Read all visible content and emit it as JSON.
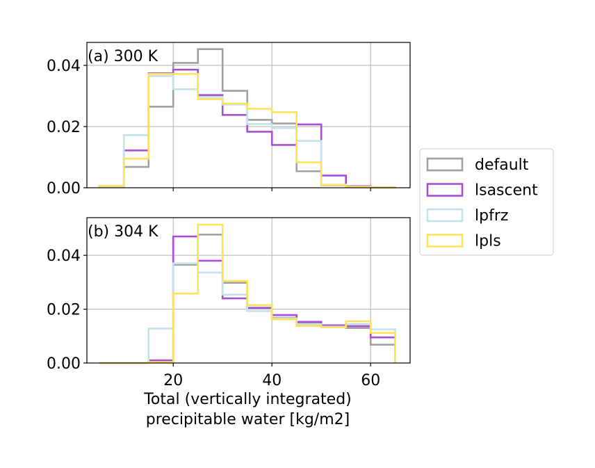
{
  "chart_data": [
    {
      "type": "histogram-step",
      "panel_label": "(a) 300 K",
      "bin_edges": [
        5,
        10,
        15,
        20,
        25,
        30,
        35,
        40,
        45,
        50,
        55,
        60,
        65
      ],
      "xlim": [
        2.5,
        68
      ],
      "ylim": [
        0,
        0.0475
      ],
      "x_ticks": [
        20,
        40,
        60
      ],
      "x_tick_labels": [
        "",
        "",
        ""
      ],
      "y_ticks": [
        0,
        0.02,
        0.04
      ],
      "y_tick_labels": [
        "0.00",
        "0.02",
        "0.04"
      ],
      "grid": true,
      "series": [
        {
          "name": "default",
          "color": "#a0a0a0",
          "values": [
            0.0005,
            0.0068,
            0.0265,
            0.0408,
            0.0453,
            0.0317,
            0.0222,
            0.021,
            0.0054,
            0.0008,
            0.0003,
            0.0001
          ]
        },
        {
          "name": "lsascent",
          "color": "#a94fd6",
          "values": [
            0.0004,
            0.0122,
            0.0374,
            0.0386,
            0.0303,
            0.0238,
            0.0183,
            0.014,
            0.0207,
            0.004,
            0.0005,
            0.0001
          ]
        },
        {
          "name": "lpfrz",
          "color": "#c3e2ea",
          "values": [
            0.0004,
            0.0172,
            0.0365,
            0.0322,
            0.0297,
            0.0272,
            0.0208,
            0.0195,
            0.0153,
            0.001,
            0.0003,
            0.0001
          ]
        },
        {
          "name": "lpls",
          "color": "#fde25c",
          "values": [
            0.0006,
            0.0095,
            0.0372,
            0.0372,
            0.029,
            0.0275,
            0.0258,
            0.0247,
            0.0083,
            0.0009,
            0.0003,
            0.0001
          ]
        }
      ]
    },
    {
      "type": "histogram-step",
      "panel_label": "(b) 304 K",
      "bin_edges": [
        5,
        10,
        15,
        20,
        25,
        30,
        35,
        40,
        45,
        50,
        55,
        60,
        65
      ],
      "xlim": [
        2.5,
        68
      ],
      "ylim": [
        0,
        0.054
      ],
      "x_ticks": [
        20,
        40,
        60
      ],
      "x_tick_labels": [
        "20",
        "40",
        "60"
      ],
      "y_ticks": [
        0,
        0.02,
        0.04
      ],
      "y_tick_labels": [
        "0.00",
        "0.02",
        "0.04"
      ],
      "xlabel": "Total (vertically integrated)\nprecipitable water [kg/m2]",
      "grid": true,
      "series": [
        {
          "name": "default",
          "color": "#a0a0a0",
          "values": [
            0,
            0,
            0.0003,
            0.0365,
            0.0477,
            0.0298,
            0.0205,
            0.0168,
            0.0148,
            0.0135,
            0.013,
            0.0068
          ]
        },
        {
          "name": "lsascent",
          "color": "#a94fd6",
          "values": [
            0,
            0,
            0.001,
            0.047,
            0.038,
            0.024,
            0.0205,
            0.0178,
            0.0153,
            0.014,
            0.0137,
            0.0095
          ]
        },
        {
          "name": "lpfrz",
          "color": "#c3e2ea",
          "values": [
            0,
            0,
            0.0128,
            0.037,
            0.0336,
            0.0254,
            0.0193,
            0.0166,
            0.0144,
            0.0135,
            0.0145,
            0.0125
          ]
        },
        {
          "name": "lpls",
          "color": "#fde25c",
          "values": [
            0,
            0,
            0.0003,
            0.0258,
            0.0514,
            0.0305,
            0.0215,
            0.0162,
            0.0138,
            0.0133,
            0.0155,
            0.0112
          ]
        }
      ]
    }
  ],
  "legend": {
    "placement": "center-right",
    "entries": [
      {
        "label": "default",
        "color": "#a0a0a0"
      },
      {
        "label": "lsascent",
        "color": "#a94fd6"
      },
      {
        "label": "lpfrz",
        "color": "#c3e2ea"
      },
      {
        "label": "lpls",
        "color": "#fde25c"
      }
    ]
  }
}
